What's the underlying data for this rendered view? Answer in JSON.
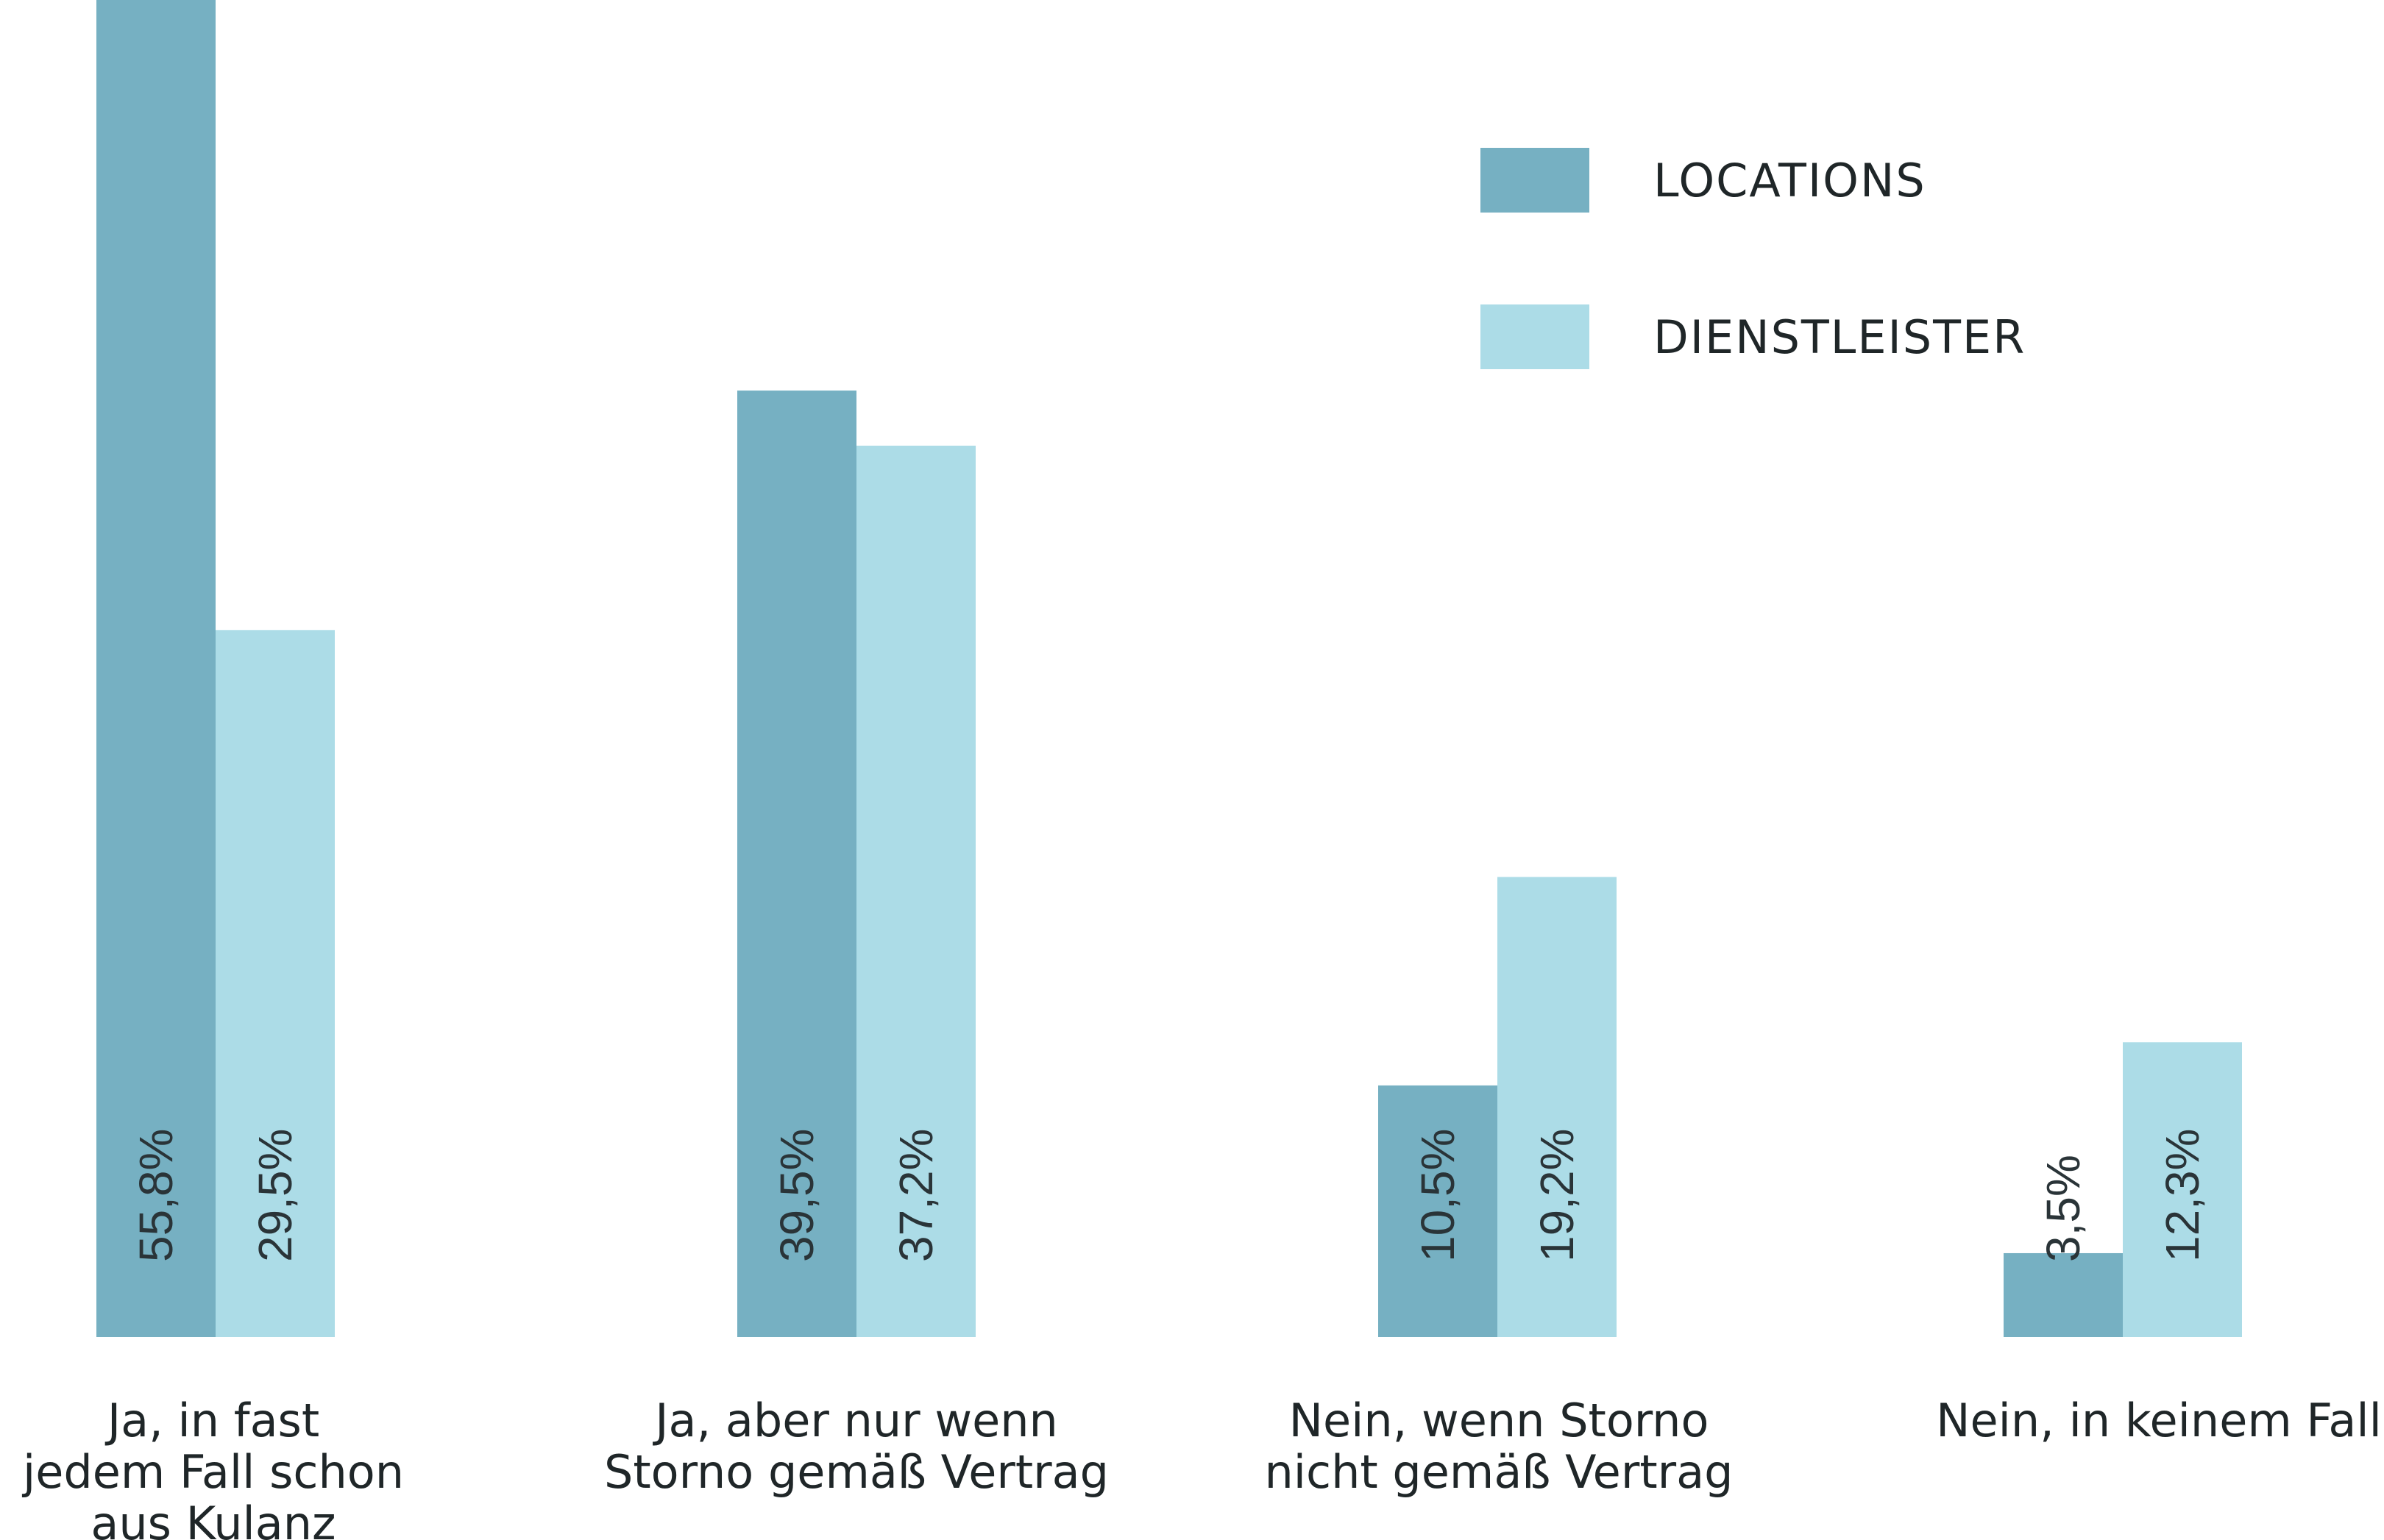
{
  "chart_data": {
    "type": "bar",
    "categories": [
      [
        "Ja, in fast",
        "jedem Fall schon",
        "aus Kulanz"
      ],
      [
        "Ja, aber nur wenn",
        "Storno gemäß Vertrag"
      ],
      [
        "Nein, wenn Storno",
        "nicht gemäß Vertrag"
      ],
      [
        "Nein, in keinem Fall"
      ]
    ],
    "series": [
      {
        "name": "LOCATIONS",
        "color": "#76b0c2",
        "values": [
          55.8,
          39.5,
          10.5,
          3.5
        ],
        "labels": [
          "55,8%",
          "39,5%",
          "10,5%",
          "3,5%"
        ]
      },
      {
        "name": "DIENSTLEISTER",
        "color": "#acdce7",
        "values": [
          29.5,
          37.2,
          19.2,
          12.3
        ],
        "labels": [
          "29,5%",
          "37,2%",
          "19,2%",
          "12,3%"
        ]
      }
    ],
    "title": "",
    "xlabel": "",
    "ylabel": "",
    "ylim": [
      0,
      55.8
    ],
    "grid": false,
    "legend": "top-right"
  }
}
